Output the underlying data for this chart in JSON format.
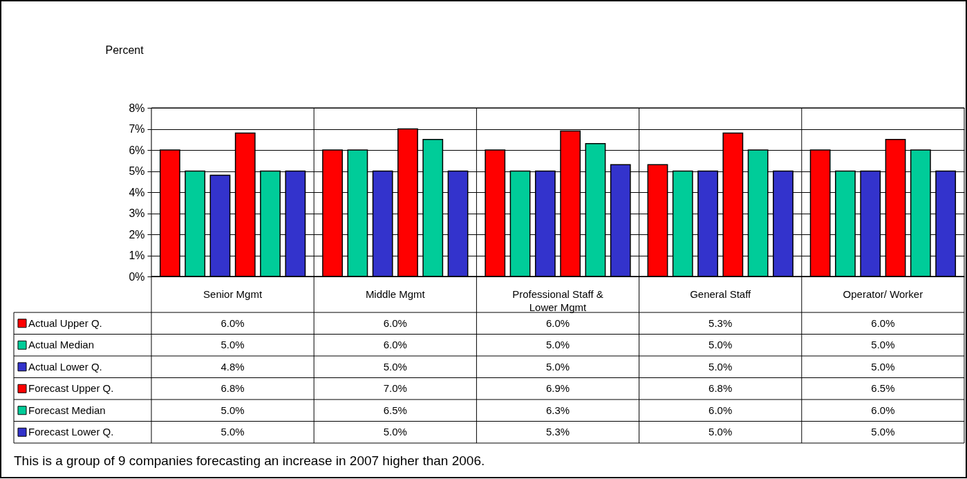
{
  "chart_data": {
    "type": "bar",
    "ylabel": "Percent",
    "categories": [
      "Senior Mgmt",
      "Middle Mgmt",
      "Professional Staff & Lower Mgmt",
      "General Staff",
      "Operator/ Worker"
    ],
    "series": [
      {
        "name": "Actual Upper Q.",
        "color": "#ff0000",
        "values": [
          6.0,
          6.0,
          6.0,
          5.3,
          6.0
        ],
        "value_labels": [
          "6.0%",
          "6.0%",
          "6.0%",
          "5.3%",
          "6.0%"
        ]
      },
      {
        "name": "Actual Median",
        "color": "#00cc99",
        "values": [
          5.0,
          6.0,
          5.0,
          5.0,
          5.0
        ],
        "value_labels": [
          "5.0%",
          "6.0%",
          "5.0%",
          "5.0%",
          "5.0%"
        ]
      },
      {
        "name": "Actual Lower Q.",
        "color": "#3333cc",
        "values": [
          4.8,
          5.0,
          5.0,
          5.0,
          5.0
        ],
        "value_labels": [
          "4.8%",
          "5.0%",
          "5.0%",
          "5.0%",
          "5.0%"
        ]
      },
      {
        "name": "Forecast Upper Q.",
        "color": "#ff0000",
        "values": [
          6.8,
          7.0,
          6.9,
          6.8,
          6.5
        ],
        "value_labels": [
          "6.8%",
          "7.0%",
          "6.9%",
          "6.8%",
          "6.5%"
        ]
      },
      {
        "name": "Forecast Median",
        "color": "#00cc99",
        "values": [
          5.0,
          6.5,
          6.3,
          6.0,
          6.0
        ],
        "value_labels": [
          "5.0%",
          "6.5%",
          "6.3%",
          "6.0%",
          "6.0%"
        ]
      },
      {
        "name": "Forecast Lower Q.",
        "color": "#3333cc",
        "values": [
          5.0,
          5.0,
          5.3,
          5.0,
          5.0
        ],
        "value_labels": [
          "5.0%",
          "5.0%",
          "5.3%",
          "5.0%",
          "5.0%"
        ]
      }
    ],
    "ylim": [
      0,
      8
    ],
    "yticks": [
      {
        "value": 0,
        "label": "0%"
      },
      {
        "value": 1,
        "label": "1%"
      },
      {
        "value": 2,
        "label": "2%"
      },
      {
        "value": 3,
        "label": "3%"
      },
      {
        "value": 4,
        "label": "4%"
      },
      {
        "value": 5,
        "label": "5%"
      },
      {
        "value": 6,
        "label": "6%"
      },
      {
        "value": 7,
        "label": "7%"
      },
      {
        "value": 8,
        "label": "8%"
      }
    ],
    "grid": "y",
    "legend": "bottom",
    "annotations": [
      "This is a group of 9 companies forecasting an increase in 2007 higher than 2006."
    ]
  }
}
